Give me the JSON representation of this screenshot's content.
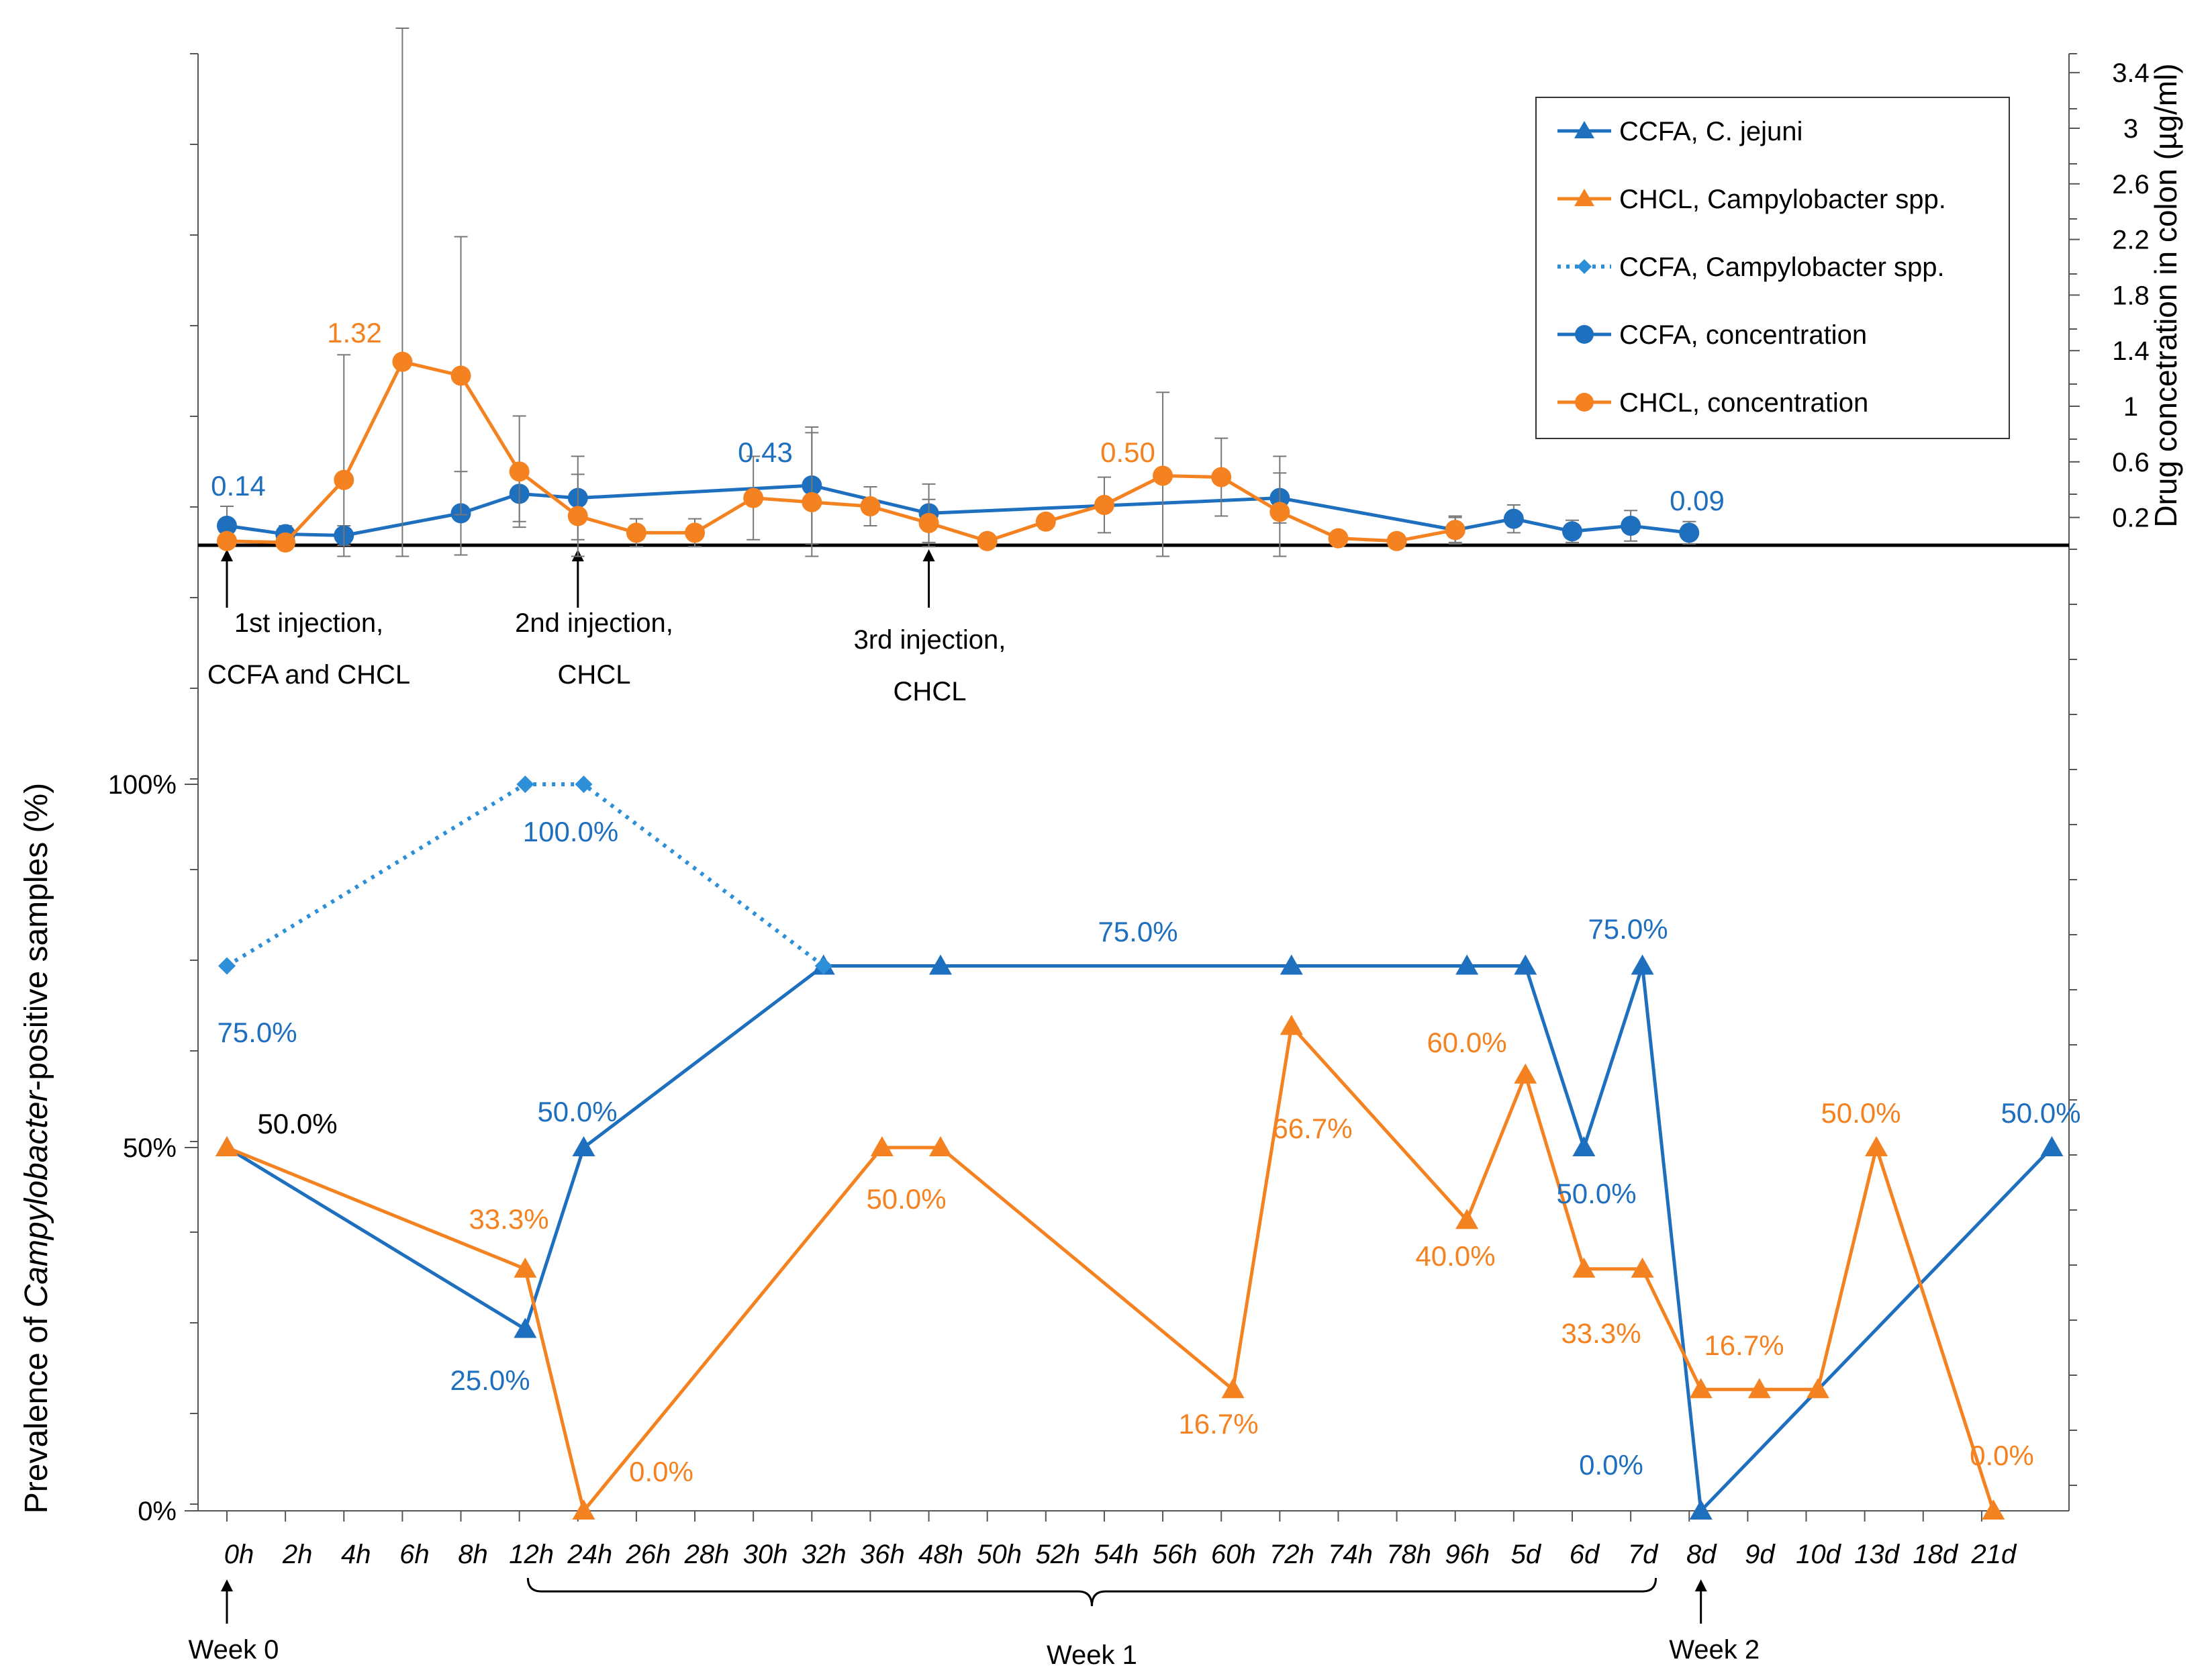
{
  "chart_data": {
    "type": "line",
    "x_tick_labels": [
      "0h",
      "2h",
      "4h",
      "6h",
      "8h",
      "12h",
      "24h",
      "26h",
      "28h",
      "30h",
      "32h",
      "36h",
      "48h",
      "50h",
      "52h",
      "54h",
      "56h",
      "60h",
      "72h",
      "74h",
      "78h",
      "96h",
      "5d",
      "6d",
      "7d",
      "8d",
      "9d",
      "10d",
      "13d",
      "18d",
      "21d"
    ],
    "week_labels": [
      "Week 0",
      "Week 1",
      "Week 2"
    ],
    "left_axis": {
      "label_prefix": "Prevalence of ",
      "label_italic": "Campylobacter",
      "label_suffix": "-positive samples (%)",
      "ticks": [
        "0%",
        "50%",
        "100%"
      ],
      "ylim": [
        0,
        100
      ]
    },
    "right_axis": {
      "label": "Drug concetration in colon (µg/ml)",
      "ticks": [
        "0.2",
        "0.6",
        "1",
        "1.4",
        "1.8",
        "2.2",
        "2.6",
        "3",
        "3.4"
      ],
      "ylim": [
        0,
        3.4
      ]
    },
    "legend": {
      "placement": "top-right",
      "entries": [
        {
          "name": "CCFA, C. jejuni",
          "color": "#1f6fbf",
          "marker": "triangle",
          "dash": "solid"
        },
        {
          "name": "CHCL, Campylobacter spp.",
          "color": "#f58220",
          "marker": "triangle",
          "dash": "solid"
        },
        {
          "name": "CCFA, Campylobacter spp.",
          "color": "#2d8fd8",
          "marker": "diamond",
          "dash": "dotted"
        },
        {
          "name": "CCFA, concentration",
          "color": "#1f6fbf",
          "marker": "circle",
          "dash": "solid"
        },
        {
          "name": "CHCL, concentration",
          "color": "#f58220",
          "marker": "circle",
          "dash": "solid"
        }
      ]
    },
    "prevalence_series": [
      {
        "name": "CCFA, C. jejuni",
        "color": "#1f6fbf",
        "marker": "triangle",
        "dash": "solid",
        "points": [
          [
            0,
            50
          ],
          [
            5.1,
            25
          ],
          [
            6.1,
            50
          ],
          [
            10.2,
            75
          ],
          [
            12.2,
            75
          ],
          [
            18.2,
            75
          ],
          [
            21.2,
            75
          ],
          [
            22.2,
            75
          ],
          [
            23.2,
            50
          ],
          [
            24.2,
            75
          ],
          [
            25.2,
            0
          ],
          [
            31.2,
            50
          ]
        ]
      },
      {
        "name": "CHCL, Campylobacter spp.",
        "color": "#f58220",
        "marker": "triangle",
        "dash": "solid",
        "points": [
          [
            0,
            50
          ],
          [
            5.1,
            33.3
          ],
          [
            6.1,
            0
          ],
          [
            11.2,
            50
          ],
          [
            12.2,
            50
          ],
          [
            17.2,
            16.7
          ],
          [
            18.2,
            66.7
          ],
          [
            21.2,
            40
          ],
          [
            22.2,
            60
          ],
          [
            23.2,
            33.3
          ],
          [
            24.2,
            33.3
          ],
          [
            25.2,
            16.7
          ],
          [
            26.2,
            16.7
          ],
          [
            27.2,
            16.7
          ],
          [
            28.2,
            50
          ],
          [
            30.2,
            0
          ]
        ]
      },
      {
        "name": "CCFA, Campylobacter spp.",
        "color": "#2d8fd8",
        "marker": "diamond",
        "dash": "dotted",
        "points": [
          [
            0,
            75
          ],
          [
            5.1,
            100
          ],
          [
            6.1,
            100
          ],
          [
            10.2,
            75
          ]
        ]
      }
    ],
    "concentration_series": [
      {
        "name": "CCFA, concentration",
        "color": "#1f6fbf",
        "points": [
          [
            0,
            0.14
          ],
          [
            1,
            0.08
          ],
          [
            2,
            0.07
          ],
          [
            4,
            0.23
          ],
          [
            5,
            0.37
          ],
          [
            6,
            0.34
          ],
          [
            10,
            0.43
          ],
          [
            12,
            0.23
          ],
          [
            18,
            0.34
          ],
          [
            21,
            0.11
          ],
          [
            22,
            0.19
          ],
          [
            23,
            0.1
          ],
          [
            24,
            0.14
          ],
          [
            25,
            0.09
          ]
        ],
        "err": [
          0.14,
          0.06,
          0.07,
          0.3,
          0.2,
          0.3,
          0.42,
          0.21,
          0.18,
          0.09,
          0.1,
          0.08,
          0.11,
          0.08
        ]
      },
      {
        "name": "CHCL, concentration",
        "color": "#f58220",
        "points": [
          [
            0,
            0.03
          ],
          [
            1,
            0.02
          ],
          [
            2,
            0.47
          ],
          [
            3,
            1.32
          ],
          [
            4,
            1.22
          ],
          [
            5,
            0.53
          ],
          [
            6,
            0.21
          ],
          [
            7,
            0.09
          ],
          [
            8,
            0.09
          ],
          [
            9,
            0.34
          ],
          [
            10,
            0.31
          ],
          [
            11,
            0.28
          ],
          [
            12,
            0.16
          ],
          [
            13,
            0.03
          ],
          [
            14,
            0.17
          ],
          [
            15,
            0.29
          ],
          [
            16,
            0.5
          ],
          [
            17,
            0.49
          ],
          [
            18,
            0.24
          ],
          [
            19,
            0.05
          ],
          [
            20,
            0.03
          ],
          [
            21,
            0.11
          ]
        ],
        "err": [
          0,
          0,
          0.9,
          2.4,
          1.0,
          0.4,
          0.3,
          0.1,
          0.1,
          0.3,
          0.5,
          0.14,
          0.17,
          0,
          0,
          0.2,
          0.6,
          0.28,
          0.4,
          0,
          0,
          0.1
        ]
      }
    ],
    "data_labels": [
      {
        "text": "75.0%",
        "color": "#1f6fbf"
      },
      {
        "text": "50.0%",
        "color": "#000000"
      },
      {
        "text": "100.0%",
        "color": "#1f6fbf"
      },
      {
        "text": "33.3%",
        "color": "#f58220"
      },
      {
        "text": "50.0%",
        "color": "#1f6fbf"
      },
      {
        "text": "25.0%",
        "color": "#1f6fbf"
      },
      {
        "text": "0.0%",
        "color": "#f58220"
      },
      {
        "text": "50.0%",
        "color": "#f58220"
      },
      {
        "text": "75.0%",
        "color": "#1f6fbf"
      },
      {
        "text": "16.7%",
        "color": "#f58220"
      },
      {
        "text": "66.7%",
        "color": "#f58220"
      },
      {
        "text": "40.0%",
        "color": "#f58220"
      },
      {
        "text": "60.0%",
        "color": "#f58220"
      },
      {
        "text": "50.0%",
        "color": "#1f6fbf"
      },
      {
        "text": "75.0%",
        "color": "#1f6fbf"
      },
      {
        "text": "33.3%",
        "color": "#f58220"
      },
      {
        "text": "16.7%",
        "color": "#f58220"
      },
      {
        "text": "0.0%",
        "color": "#1f6fbf"
      },
      {
        "text": "50.0%",
        "color": "#f58220"
      },
      {
        "text": "0.0%",
        "color": "#f58220"
      },
      {
        "text": "50.0%",
        "color": "#1f6fbf"
      }
    ],
    "concentration_labels": [
      {
        "text": "0.14",
        "color": "#1f6fbf"
      },
      {
        "text": "1.32",
        "color": "#f58220"
      },
      {
        "text": "0.43",
        "color": "#1f6fbf"
      },
      {
        "text": "0.50",
        "color": "#f58220"
      },
      {
        "text": "0.09",
        "color": "#1f6fbf"
      }
    ],
    "annotations": [
      {
        "lines": [
          "1st injection,",
          "CCFA and CHCL"
        ]
      },
      {
        "lines": [
          "2nd injection,",
          "CHCL"
        ]
      },
      {
        "lines": [
          "3rd injection,",
          "CHCL"
        ]
      }
    ]
  }
}
